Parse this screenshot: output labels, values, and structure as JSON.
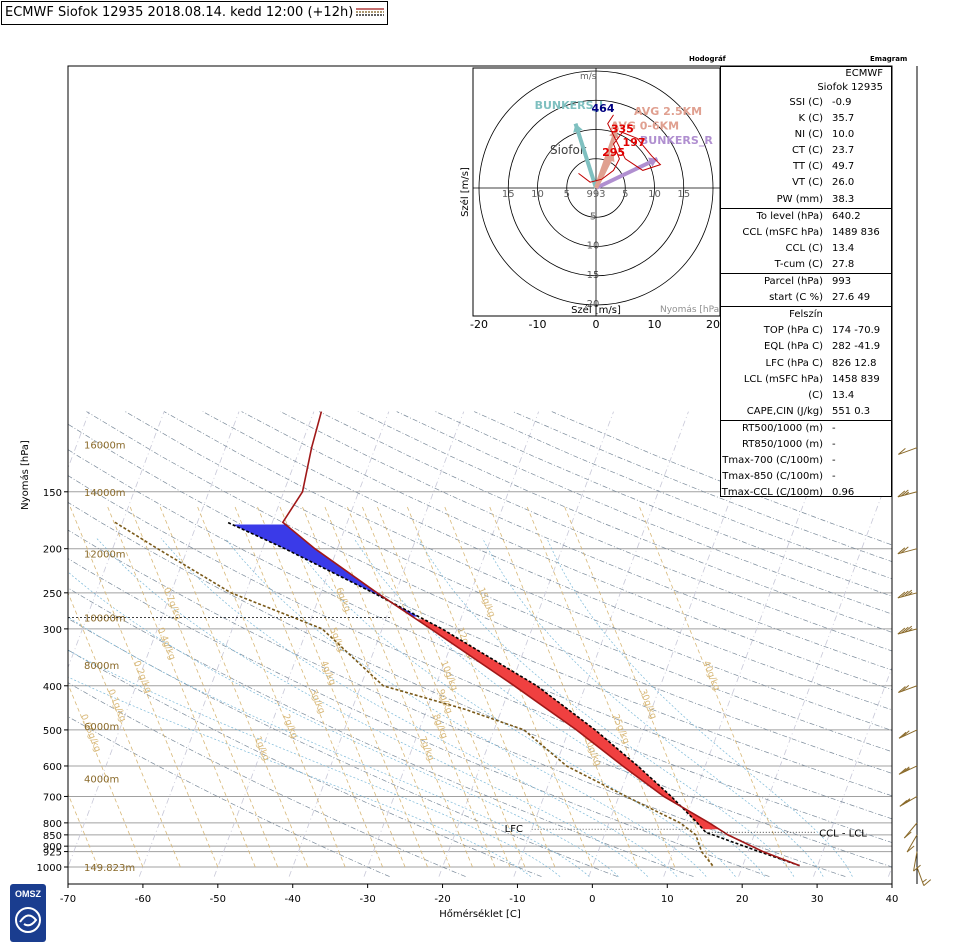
{
  "header": {
    "title": "ECMWF Siofok 12935 2018.08.14. kedd 12:00 (+12h)",
    "hodograph_panel_title": "Hodográf",
    "emagram_panel_title": "Emagram"
  },
  "chart_data": [
    {
      "type": "line",
      "name": "skew-T emagram",
      "xlabel": "Hőmérséklet [C]",
      "ylabel": "Nyomás [hPa]",
      "xlim": [
        -70,
        40
      ],
      "ylim": [
        1000,
        100
      ],
      "y_scale": "log",
      "x_ticks": [
        -70,
        -60,
        -50,
        -40,
        -30,
        -20,
        -10,
        0,
        10,
        20,
        30,
        40
      ],
      "y_ticks": [
        150,
        200,
        250,
        300,
        400,
        500,
        600,
        700,
        800,
        850,
        900,
        925,
        1000
      ],
      "height_labels": [
        {
          "text": "16000m",
          "p": 118
        },
        {
          "text": "14000m",
          "p": 150
        },
        {
          "text": "12000m",
          "p": 205
        },
        {
          "text": "10000m",
          "p": 283
        },
        {
          "text": "8000m",
          "p": 360
        },
        {
          "text": "6000m",
          "p": 490
        },
        {
          "text": "4000m",
          "p": 640
        },
        {
          "text": "149.823m",
          "p": 1000
        }
      ],
      "mixing_ratio_labels": [
        "0.02g/kg",
        "0.05g/kg",
        "0.1g/kg",
        "0.2g/kg",
        "0.4g/kg",
        "0.7g/kg",
        "1g/kg",
        "2g/kg",
        "3g/kg",
        "4g/kg",
        "5g/kg",
        "6g/kg",
        "7g/kg",
        "8g/kg",
        "9g/kg",
        "10g/kg",
        "12g/kg",
        "15g/kg",
        "20g/kg",
        "25g/kg",
        "30g/kg",
        "40g/kg"
      ],
      "temperature_profile": [
        {
          "p": 993,
          "t": 27.6
        },
        {
          "p": 925,
          "t": 22.0
        },
        {
          "p": 850,
          "t": 16.5
        },
        {
          "p": 800,
          "t": 13.4
        },
        {
          "p": 700,
          "t": 6.0
        },
        {
          "p": 600,
          "t": -1.0
        },
        {
          "p": 500,
          "t": -9.0
        },
        {
          "p": 400,
          "t": -19.5
        },
        {
          "p": 300,
          "t": -33.5
        },
        {
          "p": 250,
          "t": -42.5
        },
        {
          "p": 200,
          "t": -53.0
        },
        {
          "p": 175,
          "t": -58.6
        },
        {
          "p": 150,
          "t": -57.5
        },
        {
          "p": 120,
          "t": -58.5
        },
        {
          "p": 100,
          "t": -59.0
        }
      ],
      "dewpoint_profile": [
        {
          "p": 993,
          "t": 16.0
        },
        {
          "p": 925,
          "t": 13.8
        },
        {
          "p": 850,
          "t": 12.2
        },
        {
          "p": 800,
          "t": 9.5
        },
        {
          "p": 700,
          "t": 1.0
        },
        {
          "p": 600,
          "t": -8.5
        },
        {
          "p": 500,
          "t": -16.0
        },
        {
          "p": 450,
          "t": -25.0
        },
        {
          "p": 400,
          "t": -37.0
        },
        {
          "p": 300,
          "t": -48.0
        },
        {
          "p": 250,
          "t": -62.0
        },
        {
          "p": 200,
          "t": -74.0
        },
        {
          "p": 175,
          "t": -81.0
        }
      ],
      "parcel_profile": [
        {
          "p": 993,
          "t": 27.6
        },
        {
          "p": 925,
          "t": 21.5
        },
        {
          "p": 839,
          "t": 13.4
        },
        {
          "p": 800,
          "t": 11.8
        },
        {
          "p": 700,
          "t": 7.0
        },
        {
          "p": 600,
          "t": 1.0
        },
        {
          "p": 500,
          "t": -6.5
        },
        {
          "p": 400,
          "t": -16.5
        },
        {
          "p": 300,
          "t": -32.0
        },
        {
          "p": 250,
          "t": -43.0
        },
        {
          "p": 200,
          "t": -57.0
        },
        {
          "p": 175,
          "t": -66.0
        }
      ],
      "levels": [
        {
          "text": "LFC",
          "p": 826
        },
        {
          "text": "CCL - LCL",
          "p": 839
        }
      ],
      "wind_barbs": [
        {
          "p": 1000,
          "dir": 160,
          "kt": 5
        },
        {
          "p": 925,
          "dir": 190,
          "kt": 10
        },
        {
          "p": 850,
          "dir": 210,
          "kt": 10
        },
        {
          "p": 800,
          "dir": 220,
          "kt": 10
        },
        {
          "p": 700,
          "dir": 240,
          "kt": 15
        },
        {
          "p": 600,
          "dir": 245,
          "kt": 15
        },
        {
          "p": 500,
          "dir": 245,
          "kt": 20
        },
        {
          "p": 400,
          "dir": 250,
          "kt": 20
        },
        {
          "p": 300,
          "dir": 255,
          "kt": 25
        },
        {
          "p": 250,
          "dir": 255,
          "kt": 25
        },
        {
          "p": 200,
          "dir": 255,
          "kt": 20
        },
        {
          "p": 150,
          "dir": 255,
          "kt": 15
        },
        {
          "p": 120,
          "dir": 250,
          "kt": 10
        }
      ]
    },
    {
      "type": "line",
      "name": "hodograph",
      "xlabel": "Szél [m/s]",
      "ylabel": "Szél [m/s]",
      "unit_label": "m/s",
      "xlim": [
        -20,
        20
      ],
      "ylim": [
        -20,
        20
      ],
      "x_ticks": [
        -20,
        -10,
        0,
        10,
        20
      ],
      "ring_labels": [
        5,
        10,
        15,
        20
      ],
      "station_label": "Siofok",
      "center_label": "993",
      "pressure_legend": "Nyomás [hPa]",
      "hodograph_trace": [
        {
          "u": -3.0,
          "v": 2.5
        },
        {
          "u": -1.0,
          "v": 1.0
        },
        {
          "u": 1.0,
          "v": 1.5
        },
        {
          "u": 3.0,
          "v": 3.0
        },
        {
          "u": 4.0,
          "v": 5.0
        },
        {
          "u": 3.0,
          "v": 7.5
        },
        {
          "u": 4.5,
          "v": 9.5
        },
        {
          "u": 7.0,
          "v": 8.5
        },
        {
          "u": 9.5,
          "v": 5.5
        },
        {
          "u": 11.0,
          "v": 4.0
        },
        {
          "u": 8.0,
          "v": 3.0
        },
        {
          "u": 5.0,
          "v": 5.0
        },
        {
          "u": 2.0,
          "v": 11.0
        },
        {
          "u": 3.0,
          "v": 12.5
        }
      ],
      "vectors": [
        {
          "label": "BUNKERS_L",
          "u": -3.5,
          "v": 11.0,
          "color": "#7fc0c0"
        },
        {
          "label": "BUNKERS_R",
          "u": 10.5,
          "v": 5.0,
          "color": "#b08fd0"
        },
        {
          "label": "AVG 0-6KM",
          "u": 3.5,
          "v": 10.0,
          "color": "#e0a090"
        },
        {
          "label": "AVG 2.5KM",
          "u": 3.0,
          "v": 6.0,
          "color": "#e0a090"
        }
      ],
      "point_labels": [
        {
          "text": "464",
          "u": 1.2,
          "v": 13.0,
          "color": "#000080"
        },
        {
          "text": "335",
          "u": 4.5,
          "v": 9.5,
          "color": "#e00000"
        },
        {
          "text": "197",
          "u": 6.5,
          "v": 7.2,
          "color": "#e00000"
        },
        {
          "text": "295",
          "u": 3.0,
          "v": 5.5,
          "color": "#e00000"
        }
      ],
      "text_labels": [
        {
          "text": "BUNKERS_L",
          "u": -10.5,
          "v": 13.5,
          "color": "#7fc0c0"
        },
        {
          "text": "BUNKERS_R",
          "u": 7.5,
          "v": 7.5,
          "color": "#b08fd0"
        },
        {
          "text": "AVG 2.5KM",
          "u": 6.5,
          "v": 12.5,
          "color": "#e0a090"
        },
        {
          "text": "AVG 0-6KM",
          "u": 2.5,
          "v": 10.0,
          "color": "#e0a090"
        }
      ]
    }
  ],
  "indices": {
    "model": "ECMWF",
    "station": "Siofok 12935",
    "rows": [
      {
        "label": "SSI (C)",
        "value": "-0.9"
      },
      {
        "label": "K (C)",
        "value": "35.7"
      },
      {
        "label": "NI (C)",
        "value": "10.0"
      },
      {
        "label": "CT (C)",
        "value": "23.7"
      },
      {
        "label": "TT (C)",
        "value": "49.7"
      },
      {
        "label": "VT (C)",
        "value": "26.0"
      },
      {
        "label": "PW (mm)",
        "value": "38.3"
      },
      {
        "label": "To level (hPa)",
        "value": "640.2"
      },
      {
        "label": "CCL (mSFC hPa)",
        "value": "1489 836"
      },
      {
        "label": "CCL (C)",
        "value": "13.4"
      },
      {
        "label": "T-cum (C)",
        "value": "27.8"
      },
      {
        "label": "Parcel (hPa)",
        "value": "993"
      },
      {
        "label": "start (C %)",
        "value": "27.6 49"
      },
      {
        "label": "Felszín",
        "value": ""
      },
      {
        "label": "TOP (hPa C)",
        "value": "174 -70.9"
      },
      {
        "label": "EQL (hPa C)",
        "value": "282 -41.9"
      },
      {
        "label": "LFC (hPa C)",
        "value": "826 12.8"
      },
      {
        "label": "LCL (mSFC hPa)",
        "value": "1458 839"
      },
      {
        "label": "(C)",
        "value": "13.4"
      },
      {
        "label": "CAPE,CIN (J/kg)",
        "value": "551 0.3"
      },
      {
        "label": "RT500/1000 (m)",
        "value": "-"
      },
      {
        "label": "RT850/1000 (m)",
        "value": "-"
      },
      {
        "label": "Tmax-700 (C/100m)",
        "value": "-"
      },
      {
        "label": "Tmax-850 (C/100m)",
        "value": "-"
      },
      {
        "label": "Tmax-CCL (C/100m)",
        "value": "0.96"
      }
    ]
  },
  "logo": {
    "text": "OMSZ"
  },
  "colors": {
    "temperature": "#a01818",
    "dewpoint": "#7a5a1a",
    "parcel": "#000000",
    "cape_fill": "#f04040",
    "cin_fill": "#3a3ae8",
    "mixing_ratio": "#d8b878",
    "dry_adiabat": "#7a8a9a",
    "moist_adiabat": "#7ab8d8",
    "logo": "#1a3d8f"
  }
}
